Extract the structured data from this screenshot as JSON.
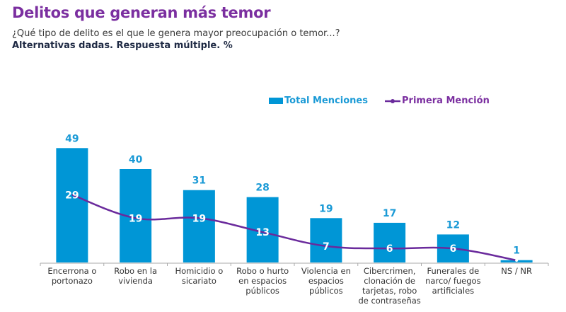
{
  "header": {
    "title": "Delitos que generan más temor",
    "subtitle": "¿Qué tipo de delito es el que le genera mayor preocupación o temor...?",
    "note": "Alternativas dadas. Respuesta múltiple. %"
  },
  "legend": {
    "bars": "Total Menciones",
    "line": "Primera Mención"
  },
  "colors": {
    "title": "#7b2fa0",
    "bars": "#0096d6",
    "bar_labels": "#1a9ad6",
    "line": "#6a2a9c",
    "axis": "#aaaaaa"
  },
  "chart_data": {
    "type": "bar",
    "title": "Delitos que generan más temor",
    "xlabel": "",
    "ylabel": "%",
    "ylim": [
      0,
      55
    ],
    "grid": false,
    "legend_position": "top-right",
    "categories": [
      [
        "Encerrona o",
        "portonazo"
      ],
      [
        "Robo en la",
        "vivienda"
      ],
      [
        "Homicidio o",
        "sicariato"
      ],
      [
        "Robo o hurto",
        "en espacios",
        "públicos"
      ],
      [
        "Violencia en",
        "espacios",
        "públicos"
      ],
      [
        "Cibercrimen,",
        "clonación de",
        "tarjetas, robo",
        "de contraseñas"
      ],
      [
        "Funerales de",
        "narco/ fuegos",
        "artificiales"
      ],
      [
        "NS / NR"
      ]
    ],
    "series": [
      {
        "name": "Total Menciones",
        "type": "bar",
        "values": [
          49,
          40,
          31,
          28,
          19,
          17,
          12,
          1
        ]
      },
      {
        "name": "Primera Mención",
        "type": "line",
        "values": [
          29,
          19,
          19,
          13,
          7,
          6,
          6,
          0
        ],
        "labels": [
          "29",
          "19",
          "19",
          "13",
          "7",
          "6",
          "6",
          ""
        ]
      }
    ]
  }
}
